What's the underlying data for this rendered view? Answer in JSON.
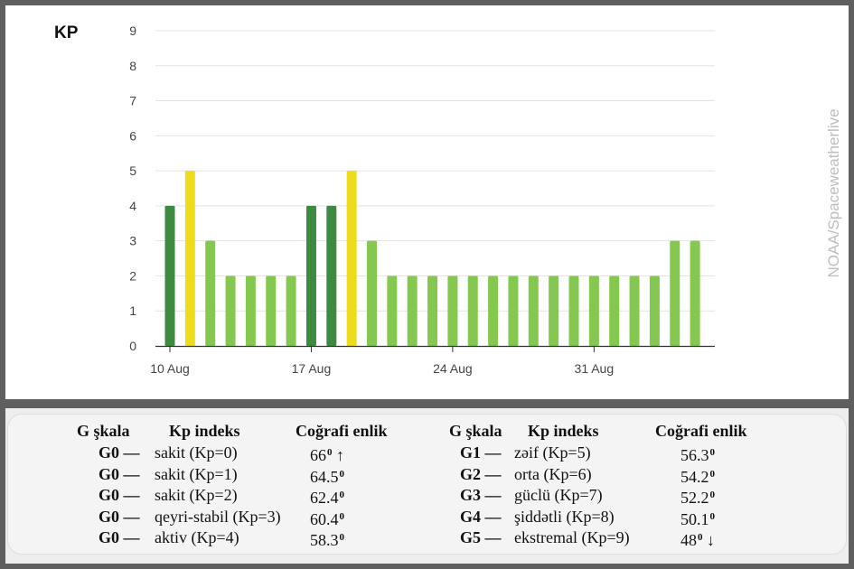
{
  "chart_data": {
    "type": "bar",
    "title": "KP",
    "watermark": "NOAA/Spaceweatherlive",
    "xlabel": "",
    "ylabel": "",
    "ylim": [
      0,
      9
    ],
    "yticks": [
      0,
      1,
      2,
      3,
      4,
      5,
      6,
      7,
      8,
      9
    ],
    "start_date": "2025-08-10",
    "xtick_labels": [
      "10 Aug",
      "17 Aug",
      "24 Aug",
      "31 Aug"
    ],
    "grid": true,
    "categories": [
      "2025-08-10",
      "2025-08-11",
      "2025-08-12",
      "2025-08-13",
      "2025-08-14",
      "2025-08-15",
      "2025-08-16",
      "2025-08-17",
      "2025-08-18",
      "2025-08-19",
      "2025-08-20",
      "2025-08-21",
      "2025-08-22",
      "2025-08-23",
      "2025-08-24",
      "2025-08-25",
      "2025-08-26",
      "2025-08-27",
      "2025-08-28",
      "2025-08-29",
      "2025-08-30",
      "2025-08-31",
      "2025-09-01",
      "2025-09-02",
      "2025-09-03",
      "2025-09-04",
      "2025-09-05"
    ],
    "values": [
      4,
      5,
      3,
      2,
      2,
      2,
      2,
      4,
      4,
      5,
      3,
      2,
      2,
      2,
      2,
      2,
      2,
      2,
      2,
      2,
      2,
      2,
      2,
      2,
      2,
      3,
      3
    ],
    "colors": {
      "kp_below_4": "#85c84f",
      "kp_4": "#3e8a40",
      "kp_5": "#eddc1b"
    }
  },
  "table": {
    "left": {
      "headers": [
        "G şkala",
        "Kp indeks",
        "Coğrafi enlik"
      ],
      "rows": [
        {
          "g": "G0 —",
          "kp": "sakit (Kp=0)",
          "lat": "66",
          "mark": "↑"
        },
        {
          "g": "G0 —",
          "kp": "sakit (Kp=1)",
          "lat": "64.5",
          "mark": ""
        },
        {
          "g": "G0 —",
          "kp": "sakit (Kp=2)",
          "lat": "62.4",
          "mark": ""
        },
        {
          "g": "G0 —",
          "kp": "qeyri-stabil (Kp=3)",
          "lat": "60.4",
          "mark": ""
        },
        {
          "g": "G0 —",
          "kp": "aktiv (Kp=4)",
          "lat": "58.3",
          "mark": ""
        }
      ]
    },
    "right": {
      "headers": [
        "G şkala",
        "Kp indeks",
        "Coğrafi enlik"
      ],
      "rows": [
        {
          "g": "G1 —",
          "kp": "zəif (Kp=5)",
          "lat": "56.3",
          "mark": ""
        },
        {
          "g": "G2 —",
          "kp": "orta (Kp=6)",
          "lat": "54.2",
          "mark": ""
        },
        {
          "g": "G3 —",
          "kp": "güclü (Kp=7)",
          "lat": "52.2",
          "mark": ""
        },
        {
          "g": "G4 —",
          "kp": "şiddətli (Kp=8)",
          "lat": "50.1",
          "mark": ""
        },
        {
          "g": "G5 —",
          "kp": "ekstremal (Kp=9)",
          "lat": "48",
          "mark": "↓"
        }
      ]
    },
    "degree_sign": "0"
  }
}
